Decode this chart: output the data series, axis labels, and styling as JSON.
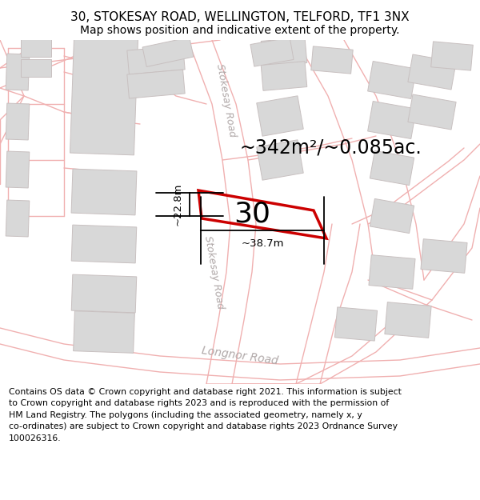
{
  "title_line1": "30, STOKESAY ROAD, WELLINGTON, TELFORD, TF1 3NX",
  "title_line2": "Map shows position and indicative extent of the property.",
  "footer_lines": "Contains OS data © Crown copyright and database right 2021. This information is subject\nto Crown copyright and database rights 2023 and is reproduced with the permission of\nHM Land Registry. The polygons (including the associated geometry, namely x, y\nco-ordinates) are subject to Crown copyright and database rights 2023 Ordnance Survey\n100026316.",
  "area_text": "~342m²/~0.085ac.",
  "number_label": "30",
  "dim_width": "~38.7m",
  "dim_height": "~22.8m",
  "road_label_stokesay_upper": "Stokesay Road",
  "road_label_stokesay_lower": "Stokesay Road",
  "road_label_longnor": "Longnor Road",
  "map_bg": "#ffffff",
  "fig_bg": "#ffffff",
  "building_fill": "#d8d8d8",
  "building_edge": "#c8c0c0",
  "road_line_color": "#f0b0b0",
  "plot_edge_color": "#cc0000",
  "road_fill_color": "#ece8e8",
  "title_fontsize": 11,
  "subtitle_fontsize": 10,
  "footer_fontsize": 7.8,
  "area_fontsize": 17,
  "number_fontsize": 26,
  "dim_fontsize": 9.5,
  "road_label_fontsize": 9
}
